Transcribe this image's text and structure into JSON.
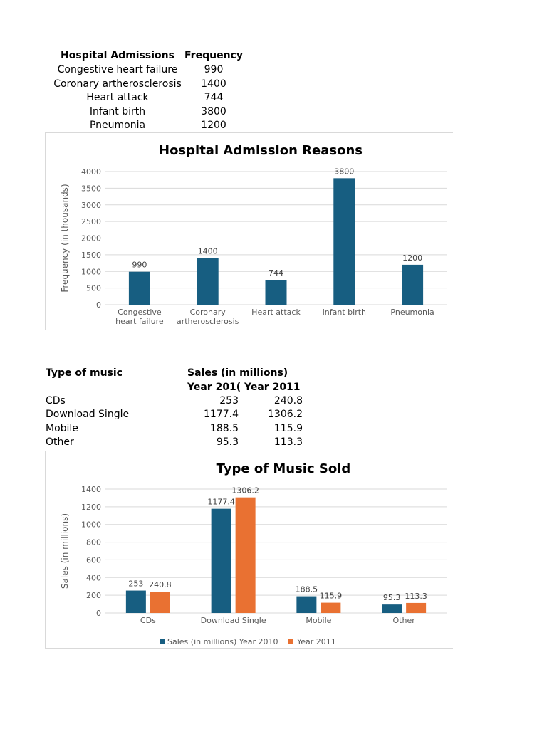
{
  "table1": {
    "headers": [
      "Hospital Admissions",
      "Frequency"
    ],
    "rows": [
      [
        "Congestive heart failure",
        "990"
      ],
      [
        "Coronary artherosclerosis",
        "1400"
      ],
      [
        "Heart attack",
        "744"
      ],
      [
        "Infant birth",
        "3800"
      ],
      [
        "Pneumonia",
        "1200"
      ]
    ]
  },
  "table2": {
    "header_col1": "Type of music",
    "header_group": "Sales (in millions)",
    "subheaders": [
      "Year 201(",
      "Year 2011"
    ],
    "rows": [
      [
        "CDs",
        "253",
        "240.8"
      ],
      [
        "Download Single",
        "1177.4",
        "1306.2"
      ],
      [
        "Mobile",
        "188.5",
        "115.9"
      ],
      [
        "Other",
        "95.3",
        "113.3"
      ]
    ]
  },
  "chart_data": [
    {
      "type": "bar",
      "title": "Hospital Admission Reasons",
      "xlabel": "",
      "ylabel": "Frequency (in thousands)",
      "categories": [
        [
          "Congestive",
          "heart failure"
        ],
        [
          "Coronary",
          "artherosclerosis"
        ],
        [
          "Heart attack"
        ],
        [
          "Infant birth"
        ],
        [
          "Pneumonia"
        ]
      ],
      "values": [
        990,
        1400,
        744,
        3800,
        1200
      ],
      "data_labels": [
        "990",
        "1400",
        "744",
        "3800",
        "1200"
      ],
      "ylim": [
        0,
        4000
      ],
      "yticks": [
        0,
        500,
        1000,
        1500,
        2000,
        2500,
        3000,
        3500,
        4000
      ],
      "grid": true,
      "colors": [
        "#175e81"
      ]
    },
    {
      "type": "bar",
      "title": "Type of Music Sold",
      "xlabel": "",
      "ylabel": "Sales (in millions)",
      "categories": [
        "CDs",
        "Download Single",
        "Mobile",
        "Other"
      ],
      "series": [
        {
          "name": "Sales (in millions) Year 2010",
          "values": [
            253,
            1177.4,
            188.5,
            95.3
          ],
          "labels": [
            "253",
            "1177.4",
            "188.5",
            "95.3"
          ],
          "color": "#175e81"
        },
        {
          "name": "Year 2011",
          "values": [
            240.8,
            1306.2,
            115.9,
            113.3
          ],
          "labels": [
            "240.8",
            "1306.2",
            "115.9",
            "113.3"
          ],
          "color": "#e97132"
        }
      ],
      "ylim": [
        0,
        1400
      ],
      "yticks": [
        0,
        200,
        400,
        600,
        800,
        1000,
        1200,
        1400
      ],
      "grid": true,
      "legend": "bottom"
    }
  ]
}
